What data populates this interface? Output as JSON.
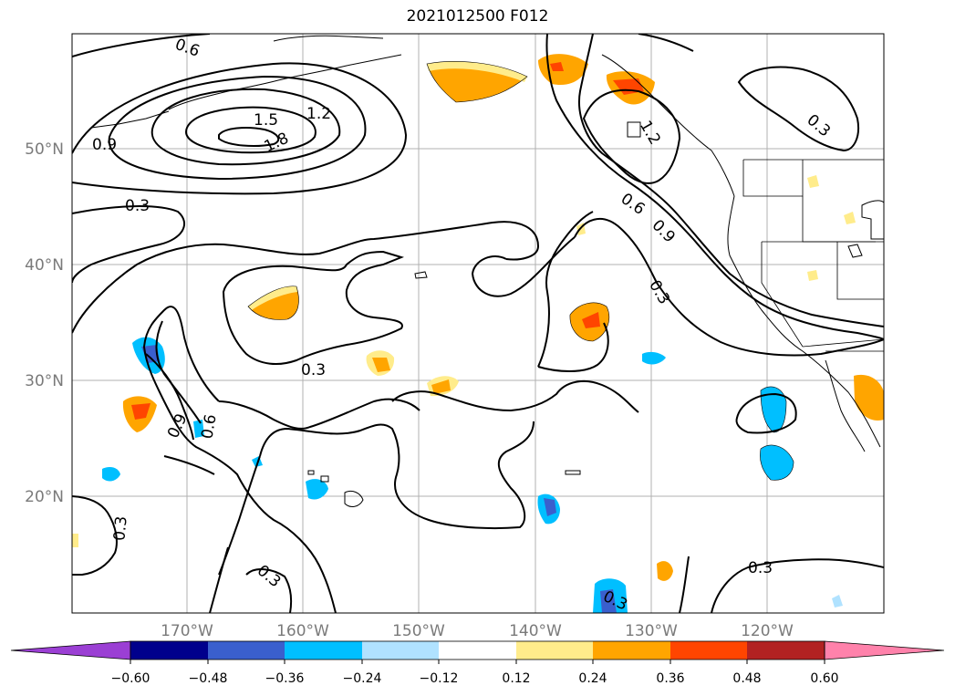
{
  "title": "2021012500 F012",
  "map": {
    "lat_labels": [
      "50°N",
      "40°N",
      "30°N",
      "20°N"
    ],
    "lon_labels": [
      "170°W",
      "160°W",
      "150°W",
      "140°W",
      "130°W",
      "120°W"
    ],
    "contour_labels": [
      "0.6",
      "1.2",
      "1.5",
      "1.8",
      "0.9",
      "0.3",
      "0.3",
      "0.9",
      "0.6",
      "1.2",
      "0.6",
      "0.9",
      "0.3",
      "0.3",
      "0.3",
      "0.3",
      "0.3",
      "0.3",
      "0.6",
      "0.9",
      "0.3"
    ]
  },
  "colorbar": {
    "tick_labels": [
      "−0.60",
      "−0.48",
      "−0.36",
      "−0.24",
      "−0.12",
      "0.12",
      "0.24",
      "0.36",
      "0.48",
      "0.60"
    ],
    "colors": [
      "#9b3fd4",
      "#00008c",
      "#3a5fcd",
      "#00bfff",
      "#b0e2ff",
      "#ffffff",
      "#ffec8b",
      "#ffa500",
      "#ff4500",
      "#b22222",
      "#ff82ab"
    ]
  }
}
